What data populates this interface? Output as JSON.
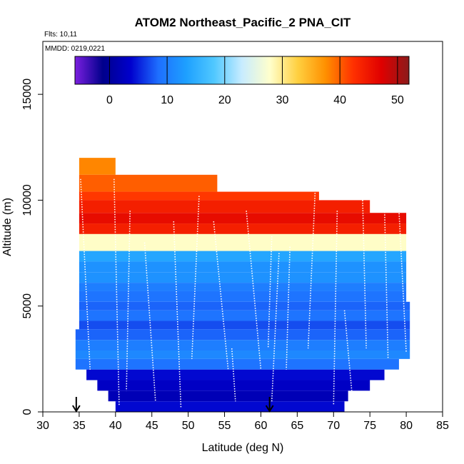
{
  "chart_data": {
    "type": "heatmap",
    "title": "ATOM2 Northeast_Pacific_2 PNA_CIT",
    "annotations": {
      "flights": "Flts: 10,11",
      "dates": "MMDD: 0219,0221"
    },
    "xlabel": "Latitude (deg N)",
    "ylabel": "Altitude (m)",
    "xlim": [
      30,
      85
    ],
    "ylim": [
      0,
      17500
    ],
    "x_ticks": [
      "30",
      "35",
      "40",
      "45",
      "50",
      "55",
      "60",
      "65",
      "70",
      "75",
      "80",
      "85"
    ],
    "y_ticks": [
      "0",
      "5000",
      "10000",
      "15000"
    ],
    "colorbar": {
      "range": [
        -6,
        52
      ],
      "ticks": [
        "0",
        "10",
        "20",
        "30",
        "40",
        "50"
      ],
      "colors": [
        "#7b1fe0",
        "#00008b",
        "#0000cd",
        "#1e6fff",
        "#1ea0ff",
        "#50c8ff",
        "#c8ecff",
        "#ffffcc",
        "#ffd040",
        "#ff9000",
        "#ff3000",
        "#e00000",
        "#8b1a1a"
      ]
    },
    "markers": [
      34.6,
      61.2
    ],
    "bands": [
      {
        "alt": [
          11200,
          12000
        ],
        "lat": [
          35,
          40.0
        ],
        "value": 38
      },
      {
        "alt": [
          10400,
          11200
        ],
        "lat": [
          35,
          54.0
        ],
        "value": 40
      },
      {
        "alt": [
          10000,
          10400
        ],
        "lat": [
          35,
          68.0
        ],
        "value": 42
      },
      {
        "alt": [
          9400,
          10000
        ],
        "lat": [
          35,
          75.0
        ],
        "value": 44
      },
      {
        "alt": [
          8900,
          9400
        ],
        "lat": [
          35,
          80.0
        ],
        "value": 46
      },
      {
        "alt": [
          8400,
          8900
        ],
        "lat": [
          35,
          80.0
        ],
        "value": 44
      },
      {
        "alt": [
          7600,
          8400
        ],
        "lat": [
          35,
          80.0
        ],
        "value": 28
      },
      {
        "alt": [
          7100,
          7600
        ],
        "lat": [
          35,
          80.0
        ],
        "value": 14
      },
      {
        "alt": [
          6600,
          7100
        ],
        "lat": [
          35,
          80.0
        ],
        "value": 12
      },
      {
        "alt": [
          6100,
          6600
        ],
        "lat": [
          35,
          80.0
        ],
        "value": 12
      },
      {
        "alt": [
          5700,
          6100
        ],
        "lat": [
          35,
          80.0
        ],
        "value": 10
      },
      {
        "alt": [
          5200,
          5700
        ],
        "lat": [
          35,
          80.0
        ],
        "value": 9
      },
      {
        "alt": [
          4800,
          5200
        ],
        "lat": [
          35,
          80.5
        ],
        "value": 8
      },
      {
        "alt": [
          4300,
          4800
        ],
        "lat": [
          35,
          80.5
        ],
        "value": 9
      },
      {
        "alt": [
          3900,
          4300
        ],
        "lat": [
          35,
          80.5
        ],
        "value": 7
      },
      {
        "alt": [
          3400,
          3900
        ],
        "lat": [
          34.5,
          80.5
        ],
        "value": 8
      },
      {
        "alt": [
          2900,
          3400
        ],
        "lat": [
          34.5,
          80.5
        ],
        "value": 10
      },
      {
        "alt": [
          2500,
          2900
        ],
        "lat": [
          34.5,
          80.5
        ],
        "value": 11
      },
      {
        "alt": [
          2000,
          2500
        ],
        "lat": [
          34.5,
          79.0
        ],
        "value": 9
      },
      {
        "alt": [
          1500,
          2000
        ],
        "lat": [
          36.0,
          77.0
        ],
        "value": 4
      },
      {
        "alt": [
          1000,
          1500
        ],
        "lat": [
          37.5,
          75.0
        ],
        "value": 3
      },
      {
        "alt": [
          500,
          1000
        ],
        "lat": [
          39.0,
          72.0
        ],
        "value": 2
      },
      {
        "alt": [
          0,
          500
        ],
        "lat": [
          40.0,
          71.5
        ],
        "value": 4
      }
    ],
    "profiles": [
      {
        "lat": [
          35.2,
          36.5
        ],
        "alt": [
          11000,
          2000
        ]
      },
      {
        "lat": [
          39.8,
          40.5
        ],
        "alt": [
          11000,
          300
        ]
      },
      {
        "lat": [
          42.0,
          41.5
        ],
        "alt": [
          9500,
          1000
        ]
      },
      {
        "lat": [
          44.0,
          45.5
        ],
        "alt": [
          8000,
          500
        ]
      },
      {
        "lat": [
          48.0,
          49.0
        ],
        "alt": [
          9000,
          200
        ]
      },
      {
        "lat": [
          51.5,
          50.5
        ],
        "alt": [
          10200,
          2500
        ]
      },
      {
        "lat": [
          53.5,
          55.5
        ],
        "alt": [
          9000,
          2000
        ]
      },
      {
        "lat": [
          56.0,
          56.5
        ],
        "alt": [
          3000,
          500
        ]
      },
      {
        "lat": [
          58.0,
          60.0
        ],
        "alt": [
          9500,
          2000
        ]
      },
      {
        "lat": [
          61.5,
          61.0
        ],
        "alt": [
          8300,
          3000
        ]
      },
      {
        "lat": [
          62.5,
          61.5
        ],
        "alt": [
          7500,
          500
        ]
      },
      {
        "lat": [
          64.0,
          63.5
        ],
        "alt": [
          7800,
          2000
        ]
      },
      {
        "lat": [
          67.5,
          66.5
        ],
        "alt": [
          10700,
          3000
        ]
      },
      {
        "lat": [
          70.5,
          70.0
        ],
        "alt": [
          9500,
          300
        ]
      },
      {
        "lat": [
          71.5,
          72.5
        ],
        "alt": [
          4800,
          1000
        ]
      },
      {
        "lat": [
          74.0,
          74.5
        ],
        "alt": [
          10000,
          3000
        ]
      },
      {
        "lat": [
          77.0,
          77.5
        ],
        "alt": [
          9800,
          2500
        ]
      },
      {
        "lat": [
          79.0,
          80.0
        ],
        "alt": [
          9500,
          2800
        ]
      }
    ]
  }
}
